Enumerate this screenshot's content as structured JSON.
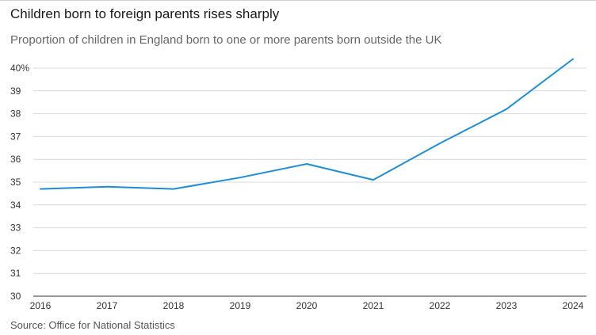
{
  "chart_data": {
    "type": "line",
    "title": "Children born to foreign parents rises sharply",
    "subtitle": "Proportion of children in England born to one or more parents born outside the UK",
    "source": "Source: Office for National Statistics",
    "x": [
      "2016",
      "2017",
      "2018",
      "2019",
      "2020",
      "2021",
      "2022",
      "2023",
      "2024"
    ],
    "series": [
      {
        "values": [
          34.7,
          34.8,
          34.7,
          35.2,
          35.8,
          35.1,
          36.7,
          38.2,
          40.4
        ],
        "color": "#1a8fd9"
      }
    ],
    "ylim": [
      30,
      41
    ],
    "y_ticks": [
      30,
      31,
      32,
      33,
      34,
      35,
      36,
      37,
      38,
      39,
      40
    ],
    "y_tick_labels": [
      "30",
      "31",
      "32",
      "33",
      "34",
      "35",
      "36",
      "37",
      "38",
      "39",
      "40%"
    ],
    "grid": true,
    "legend": "none"
  }
}
